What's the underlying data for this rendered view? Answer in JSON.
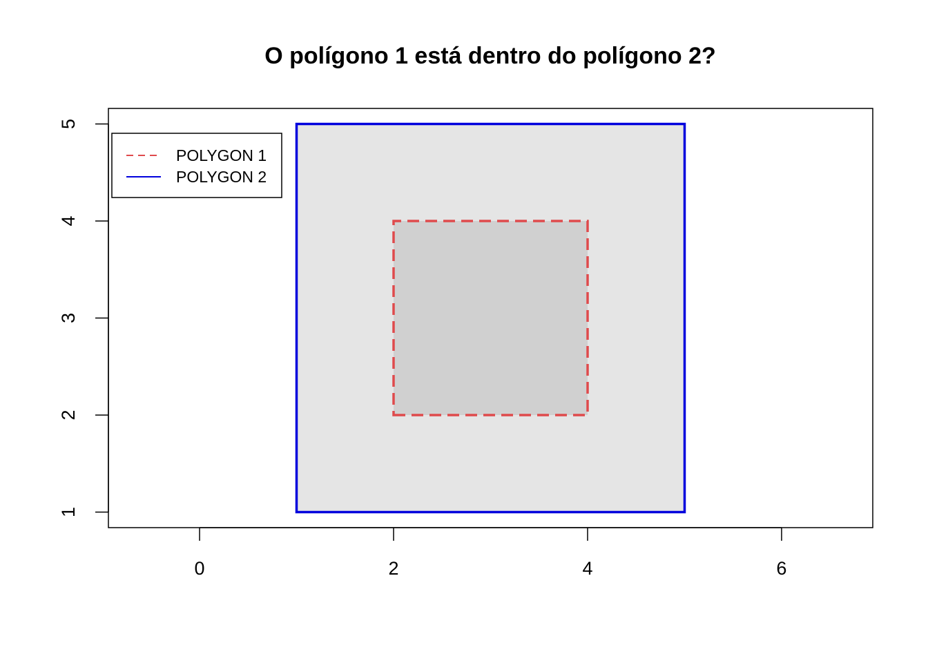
{
  "chart_data": {
    "type": "area",
    "title": "O polígono 1 está dentro do polígono 2?",
    "xlabel": "",
    "ylabel": "",
    "xlim": [
      -0.94,
      6.94
    ],
    "ylim": [
      0.84,
      5.16
    ],
    "x_ticks": [
      "0",
      "2",
      "4",
      "6"
    ],
    "y_ticks": [
      "1",
      "2",
      "3",
      "4",
      "5"
    ],
    "grid": false,
    "legend_position": "top-left",
    "series": [
      {
        "name": "POLYGON 1",
        "color": "#DF4A4C",
        "fill": "#D0D0D0",
        "line_style": "dashed",
        "x": [
          2,
          4,
          4,
          2,
          2
        ],
        "y": [
          2,
          2,
          4,
          4,
          2
        ]
      },
      {
        "name": "POLYGON 2",
        "color": "#0000DD",
        "fill": "#E5E5E5",
        "line_style": "solid",
        "x": [
          1,
          5,
          5,
          1,
          1
        ],
        "y": [
          1,
          1,
          5,
          5,
          1
        ]
      }
    ]
  }
}
